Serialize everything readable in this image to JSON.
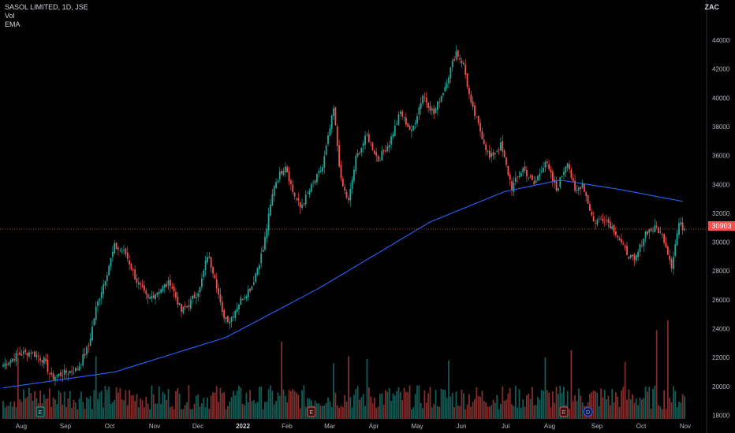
{
  "header": {
    "title": "SASOL LIMITED, 1D, JSE",
    "volume_label": "Vol",
    "ema_label": "EMA",
    "currency": "ZAC"
  },
  "price_tag": {
    "value": "30903",
    "color": "#ef5350"
  },
  "colors": {
    "up": "#26a69a",
    "down": "#ef5350",
    "ema": "#2962ff",
    "background": "#000000"
  },
  "chart_data": {
    "type": "candlestick",
    "title": "SASOL LIMITED, 1D, JSE",
    "ylim": [
      17500,
      44500
    ],
    "y_ticks": [
      18000,
      20000,
      22000,
      24000,
      26000,
      28000,
      30000,
      32000,
      34000,
      36000,
      38000,
      40000,
      42000,
      44000
    ],
    "x_ticks": [
      {
        "label": "Aug",
        "bold": false
      },
      {
        "label": "Sep",
        "bold": false
      },
      {
        "label": "Oct",
        "bold": false
      },
      {
        "label": "Nov",
        "bold": false
      },
      {
        "label": "Dec",
        "bold": false
      },
      {
        "label": "2022",
        "bold": true
      },
      {
        "label": "Feb",
        "bold": false
      },
      {
        "label": "Mar",
        "bold": false
      },
      {
        "label": "Apr",
        "bold": false
      },
      {
        "label": "May",
        "bold": false
      },
      {
        "label": "Jun",
        "bold": false
      },
      {
        "label": "Jul",
        "bold": false
      },
      {
        "label": "Aug",
        "bold": false
      },
      {
        "label": "Sep",
        "bold": false
      },
      {
        "label": "Oct",
        "bold": false
      },
      {
        "label": "Nov",
        "bold": false
      }
    ],
    "close_anchors": [
      [
        0,
        21500
      ],
      [
        8,
        22200
      ],
      [
        15,
        22400
      ],
      [
        22,
        21800
      ],
      [
        26,
        20600
      ],
      [
        30,
        20800
      ],
      [
        40,
        21200
      ],
      [
        46,
        22800
      ],
      [
        50,
        25400
      ],
      [
        55,
        27500
      ],
      [
        60,
        29700
      ],
      [
        66,
        29200
      ],
      [
        72,
        27300
      ],
      [
        78,
        26000
      ],
      [
        84,
        26700
      ],
      [
        90,
        27200
      ],
      [
        96,
        25200
      ],
      [
        100,
        25700
      ],
      [
        106,
        26800
      ],
      [
        110,
        29100
      ],
      [
        114,
        27700
      ],
      [
        118,
        25000
      ],
      [
        122,
        24600
      ],
      [
        128,
        26000
      ],
      [
        134,
        27000
      ],
      [
        140,
        29500
      ],
      [
        146,
        34000
      ],
      [
        152,
        35400
      ],
      [
        156,
        33500
      ],
      [
        160,
        32400
      ],
      [
        166,
        33800
      ],
      [
        172,
        35200
      ],
      [
        178,
        39200
      ],
      [
        182,
        34200
      ],
      [
        186,
        32800
      ],
      [
        190,
        35800
      ],
      [
        196,
        37400
      ],
      [
        202,
        35700
      ],
      [
        208,
        36900
      ],
      [
        214,
        39000
      ],
      [
        220,
        37600
      ],
      [
        226,
        40200
      ],
      [
        232,
        38900
      ],
      [
        238,
        40800
      ],
      [
        244,
        43200
      ],
      [
        248,
        42300
      ],
      [
        252,
        39500
      ],
      [
        256,
        38100
      ],
      [
        262,
        35800
      ],
      [
        268,
        36700
      ],
      [
        274,
        33800
      ],
      [
        280,
        35100
      ],
      [
        286,
        34000
      ],
      [
        292,
        35600
      ],
      [
        298,
        33600
      ],
      [
        304,
        35700
      ],
      [
        308,
        33400
      ],
      [
        312,
        34100
      ],
      [
        318,
        31400
      ],
      [
        324,
        31700
      ],
      [
        330,
        30700
      ],
      [
        334,
        29600
      ],
      [
        340,
        28600
      ],
      [
        346,
        30700
      ],
      [
        352,
        31000
      ],
      [
        356,
        30200
      ],
      [
        360,
        28400
      ],
      [
        364,
        31300
      ],
      [
        367,
        30903
      ]
    ],
    "ema": [
      [
        0,
        19900
      ],
      [
        60,
        21000
      ],
      [
        120,
        23400
      ],
      [
        170,
        26800
      ],
      [
        230,
        31400
      ],
      [
        270,
        33500
      ],
      [
        300,
        34300
      ],
      [
        330,
        33700
      ],
      [
        367,
        32800
      ]
    ],
    "volume_spikes": [
      [
        8,
        22000
      ],
      [
        50,
        22100
      ],
      [
        150,
        23100
      ],
      [
        178,
        21600
      ],
      [
        186,
        22100
      ],
      [
        196,
        21900
      ],
      [
        240,
        21800
      ],
      [
        292,
        22000
      ],
      [
        306,
        22500
      ],
      [
        335,
        21700
      ],
      [
        352,
        23900
      ],
      [
        358,
        24600
      ]
    ],
    "volume_range": [
      17500,
      25000
    ],
    "events": [
      {
        "label": "E",
        "idx": 20,
        "kind": "earnings-positive"
      },
      {
        "label": "E",
        "idx": 166,
        "kind": "earnings-negative"
      },
      {
        "label": "E",
        "idx": 302,
        "kind": "earnings-negative"
      },
      {
        "label": "D",
        "idx": 315,
        "kind": "dividend"
      }
    ]
  }
}
